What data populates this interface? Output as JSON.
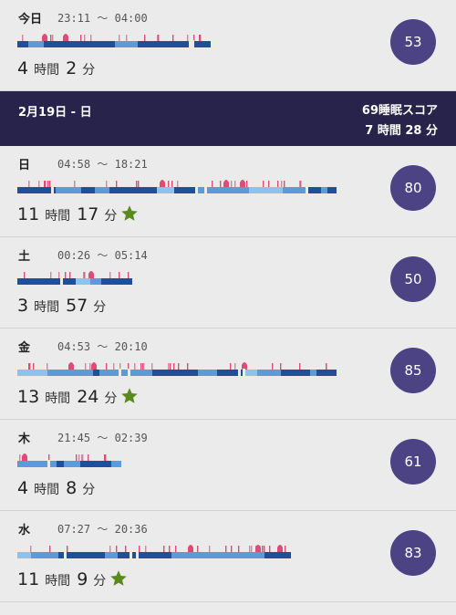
{
  "today": {
    "day": "今日",
    "start": "23:11",
    "end": "04:00",
    "hours": "4",
    "minutes": "2",
    "hour_unit": "時間",
    "minute_unit": "分",
    "score": "53",
    "star": false
  },
  "summary": {
    "date": "2月19日 - 日",
    "score_label": "69睡眠スコア",
    "total": "7 時間 28 分"
  },
  "entries": [
    {
      "day": "日",
      "start": "04:58",
      "end": "18:21",
      "hours": "11",
      "minutes": "17",
      "score": "80",
      "star": true
    },
    {
      "day": "土",
      "start": "00:26",
      "end": "05:14",
      "hours": "3",
      "minutes": "57",
      "score": "50",
      "star": false
    },
    {
      "day": "金",
      "start": "04:53",
      "end": "20:10",
      "hours": "13",
      "minutes": "24",
      "score": "85",
      "star": true
    },
    {
      "day": "木",
      "start": "21:45",
      "end": "02:39",
      "hours": "4",
      "minutes": "8",
      "score": "61",
      "star": false
    },
    {
      "day": "水",
      "start": "07:27",
      "end": "20:36",
      "hours": "11",
      "minutes": "9",
      "score": "83",
      "star": true
    }
  ],
  "tilde": "〜",
  "hour_unit": "時間",
  "minute_unit": "分",
  "colors": {
    "awake": "#e04a76",
    "light": "#5b9bd9",
    "deep": "#1f4f9a",
    "rem": "#8cc3ee",
    "score_circle": "#4b4384",
    "summary_bg": "#28234a",
    "star": "#5a8a1e"
  },
  "icons": {
    "star": "star-icon"
  }
}
